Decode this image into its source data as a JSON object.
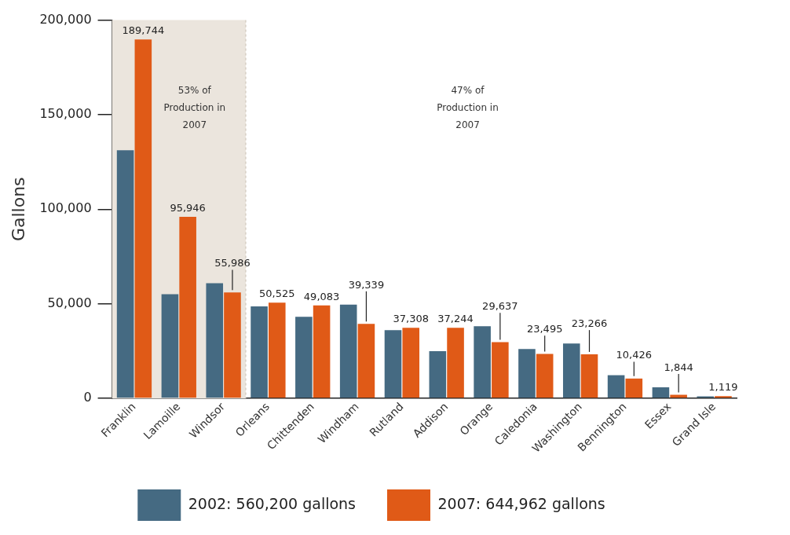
{
  "chart_data": {
    "type": "bar",
    "ylabel": "Gallons",
    "categories": [
      "Franklin",
      "Lamoille",
      "Windsor",
      "Orleans",
      "Chittenden",
      "Windham",
      "Rutland",
      "Addison",
      "Orange",
      "Caledonia",
      "Washington",
      "Bennington",
      "Essex",
      "Grand Isle"
    ],
    "series": [
      {
        "name": "2002: 560,200 gallons",
        "color": "#456a82",
        "values": [
          131200,
          55000,
          60800,
          48600,
          43100,
          49500,
          36000,
          24900,
          38100,
          26100,
          29000,
          12200,
          5800,
          1000
        ]
      },
      {
        "name": "2007: 644,962 gallons",
        "color": "#e05a17",
        "values": [
          189744,
          95946,
          55986,
          50525,
          49083,
          39339,
          37308,
          37244,
          29637,
          23495,
          23266,
          10426,
          1844,
          1119
        ],
        "value_labels": [
          "189,744",
          "95,946",
          "55,986",
          "50,525",
          "49,083",
          "39,339",
          "37,308",
          "37,244",
          "29,637",
          "23,495",
          "23,266",
          "10,426",
          "1,844",
          "1,119"
        ]
      }
    ],
    "ylim": [
      0,
      200000
    ],
    "yticks": [
      {
        "value": 0,
        "label": "0"
      },
      {
        "value": 50000,
        "label": "50,000"
      },
      {
        "value": 100000,
        "label": "100,000"
      },
      {
        "value": 150000,
        "label": "150,000"
      },
      {
        "value": 200000,
        "label": "200,000"
      }
    ],
    "bands": [
      {
        "axis": "x",
        "from": "Franklin",
        "to": "Windsor",
        "label": null,
        "color": "#ebe5dd"
      }
    ],
    "annotations": [
      "53% of Production in 2007",
      "47% of Production in 2007"
    ],
    "grid": false,
    "legend": "bottom"
  }
}
